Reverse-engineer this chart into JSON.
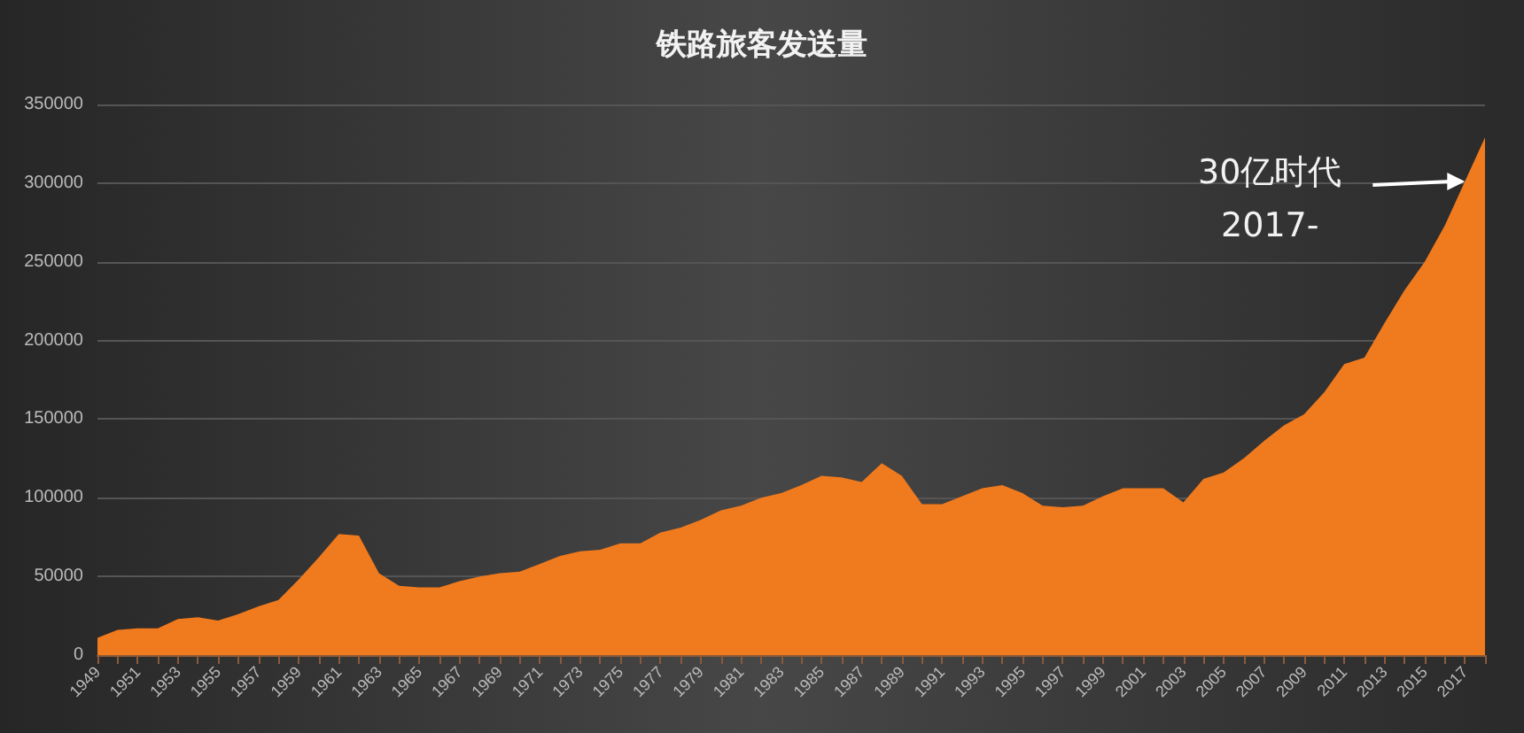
{
  "chart_data": {
    "type": "area",
    "title": "铁路旅客发送量",
    "categories": [
      "1949",
      null,
      "1951",
      null,
      "1953",
      null,
      "1955",
      null,
      "1957",
      null,
      "1959",
      null,
      "1961",
      null,
      "1963",
      null,
      "1965",
      null,
      "1967",
      null,
      "1969",
      null,
      "1971",
      null,
      "1973",
      null,
      "1975",
      null,
      "1977",
      null,
      "1979",
      null,
      "1981",
      null,
      "1983",
      null,
      "1985",
      null,
      "1987",
      null,
      "1989",
      null,
      "1991",
      null,
      "1993",
      null,
      "1995",
      null,
      "1997",
      null,
      "1999",
      null,
      "2001",
      null,
      "2003",
      null,
      "2005",
      null,
      "2007",
      null,
      "2009",
      null,
      "2011",
      null,
      "2013",
      null,
      "2015",
      null,
      "2017",
      null
    ],
    "values": [
      11000,
      16000,
      17000,
      17000,
      23000,
      24000,
      22000,
      26000,
      31000,
      35000,
      48000,
      62000,
      77000,
      76000,
      52000,
      44000,
      43000,
      43000,
      47000,
      50000,
      52000,
      53000,
      58000,
      63000,
      66000,
      67000,
      71000,
      71000,
      78000,
      81000,
      86000,
      92000,
      95000,
      100000,
      103000,
      108000,
      114000,
      113000,
      110000,
      122000,
      114000,
      96000,
      96000,
      101000,
      106000,
      108000,
      103000,
      95000,
      94000,
      95000,
      101000,
      106000,
      106000,
      106000,
      97000,
      112000,
      116000,
      125000,
      136000,
      146000,
      153000,
      167000,
      185000,
      189000,
      211000,
      232000,
      250000,
      273000,
      301000,
      329000
    ],
    "color": "#f07a1e",
    "ylim": [
      0,
      350000
    ],
    "yticks": [
      0,
      50000,
      100000,
      150000,
      200000,
      250000,
      300000,
      350000
    ],
    "grid": "y",
    "annotations": [
      {
        "text": "30亿时代\n2017-",
        "x": "2017",
        "y": 301000
      }
    ]
  }
}
